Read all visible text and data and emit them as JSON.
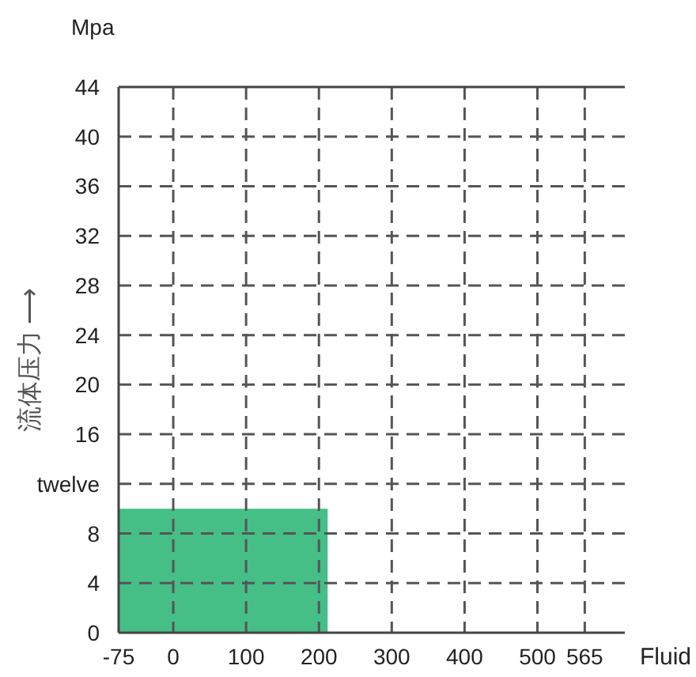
{
  "chart_data": {
    "type": "area",
    "x": [
      -75,
      212
    ],
    "series": [
      {
        "color": "#45bf86",
        "values": [
          10,
          10
        ]
      }
    ],
    "xlim": [
      -75,
      620
    ],
    "xticks": [
      -75,
      0,
      100,
      200,
      300,
      400,
      500,
      565
    ],
    "ylim": [
      0,
      44
    ],
    "yticks": [
      0,
      4,
      8,
      {
        "value": 12,
        "label": "twelve"
      },
      16,
      20,
      24,
      28,
      32,
      36,
      40,
      44
    ],
    "xlabel": "Fluid",
    "ylabel": "流体压力 ⟶",
    "annotations": [
      "Mpa"
    ],
    "grid": true,
    "line_style": "dashed"
  }
}
